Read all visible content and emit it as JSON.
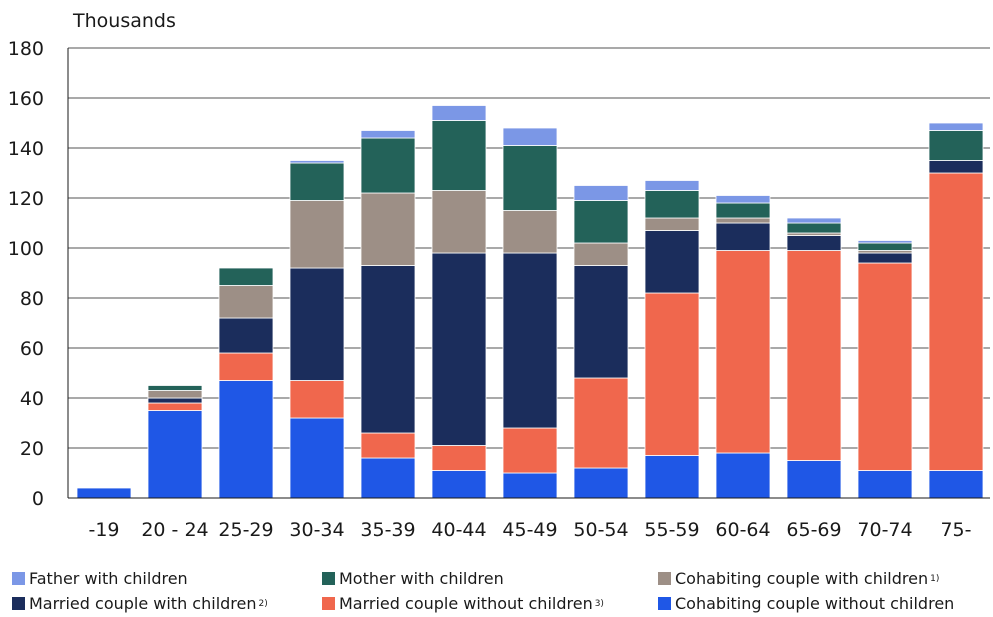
{
  "chart_data": {
    "type": "bar",
    "stacked": true,
    "ylabel": "Thousands",
    "ylim": [
      0,
      180
    ],
    "yticks": [
      0,
      20,
      40,
      60,
      80,
      100,
      120,
      140,
      160,
      180
    ],
    "grid": true,
    "legend_position": "bottom",
    "categories": [
      "-19",
      "20 - 24",
      "25-29",
      "30-34",
      "35-39",
      "40-44",
      "45-49",
      "50-54",
      "55-59",
      "60-64",
      "65-69",
      "70-74",
      "75-"
    ],
    "series": [
      {
        "name": "Cohabiting couple without children",
        "color": "#1f57e6",
        "values": [
          4,
          35,
          47,
          32,
          16,
          11,
          10,
          12,
          17,
          18,
          15,
          11,
          11
        ]
      },
      {
        "name": "Married couple without children",
        "footnote": "3)",
        "color": "#f0674d",
        "values": [
          0,
          3,
          11,
          15,
          10,
          10,
          18,
          36,
          65,
          81,
          84,
          83,
          119
        ]
      },
      {
        "name": "Married couple with children",
        "footnote": "2)",
        "color": "#1b2d5c",
        "values": [
          0,
          2,
          14,
          45,
          67,
          77,
          70,
          45,
          25,
          11,
          6,
          4,
          5
        ]
      },
      {
        "name": "Cohabiting couple with children",
        "footnote": "1)",
        "color": "#9d8f86",
        "values": [
          0,
          3,
          13,
          27,
          29,
          25,
          17,
          9,
          5,
          2,
          1,
          1,
          0
        ]
      },
      {
        "name": "Mother with children",
        "color": "#236259",
        "values": [
          0,
          2,
          7,
          15,
          22,
          28,
          26,
          17,
          11,
          6,
          4,
          3,
          12
        ]
      },
      {
        "name": "Father with children",
        "color": "#7b97e6",
        "values": [
          0,
          0,
          0,
          1,
          3,
          6,
          7,
          6,
          4,
          3,
          2,
          1,
          3
        ]
      }
    ]
  },
  "legend": [
    {
      "label": "Father with children",
      "footnote": "",
      "color": "#7b97e6"
    },
    {
      "label": "Mother with children",
      "footnote": "",
      "color": "#236259"
    },
    {
      "label": "Cohabiting couple with children",
      "footnote": "1)",
      "color": "#9d8f86"
    },
    {
      "label": "Married couple with children",
      "footnote": "2)",
      "color": "#1b2d5c"
    },
    {
      "label": "Married couple without children",
      "footnote": "3)",
      "color": "#f0674d"
    },
    {
      "label": "Cohabiting couple without children",
      "footnote": "",
      "color": "#1f57e6"
    }
  ]
}
